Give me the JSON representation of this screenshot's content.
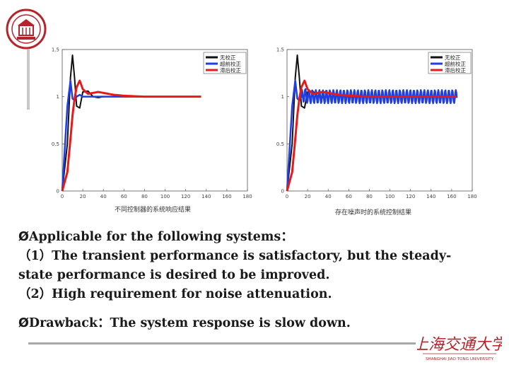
{
  "colors": {
    "black_series": "#111111",
    "blue_series": "#1f3fe0",
    "red_series": "#e61a1a",
    "seal": "#b4242a",
    "logo": "#b4242a"
  },
  "chart_data": [
    {
      "type": "line",
      "x": [
        0,
        5,
        8,
        10,
        12,
        14,
        17,
        20,
        25,
        30,
        35,
        40,
        50,
        60,
        80,
        100,
        120,
        140,
        160,
        180
      ],
      "xlim": [
        0,
        180
      ],
      "ylim": [
        0,
        1.5
      ],
      "xticks": [
        "0",
        "20",
        "40",
        "60",
        "80",
        "100",
        "120",
        "140",
        "160",
        "180"
      ],
      "yticks": [
        "0",
        "0.5",
        "1",
        "1.5"
      ],
      "caption": "不同控制器的系统响应结果",
      "legend_position": "top-right",
      "series": [
        {
          "name": "无校正",
          "values": [
            0,
            0.5,
            1.2,
            1.44,
            1.2,
            0.9,
            0.88,
            1.05,
            1.06,
            1.0,
            0.99,
            1.0,
            1.0,
            1.0,
            1.0,
            1.0,
            1.0,
            1.0,
            1.0,
            1.0
          ]
        },
        {
          "name": "超前校正",
          "values": [
            0,
            0.9,
            1.17,
            0.98,
            0.96,
            1.0,
            1.02,
            1.0,
            1.0,
            1.0,
            1.0,
            1.0,
            1.0,
            1.0,
            1.0,
            1.0,
            1.0,
            1.0,
            1.0,
            1.0
          ]
        },
        {
          "name": "滞后校正",
          "values": [
            0,
            0.2,
            0.55,
            0.8,
            0.98,
            1.1,
            1.17,
            1.08,
            1.03,
            1.04,
            1.05,
            1.04,
            1.02,
            1.01,
            1.0,
            1.0,
            1.0,
            1.0,
            1.0,
            1.0
          ]
        }
      ]
    },
    {
      "type": "line",
      "x": [
        0,
        5,
        8,
        10,
        12,
        14,
        17,
        20,
        25,
        30,
        35,
        40,
        50,
        60,
        80,
        100,
        120,
        140,
        160,
        180
      ],
      "xlim": [
        0,
        180
      ],
      "ylim": [
        0,
        1.5
      ],
      "xticks": [
        "0",
        "20",
        "40",
        "60",
        "80",
        "100",
        "120",
        "140",
        "160",
        "180"
      ],
      "yticks": [
        "0",
        "0.5",
        "1",
        "1.5"
      ],
      "caption": "存在噪声时的系统控制结果",
      "legend_position": "top-right",
      "series": [
        {
          "name": "无校正",
          "values": [
            0,
            0.5,
            1.2,
            1.44,
            1.2,
            0.9,
            0.88,
            1.05,
            1.06,
            1.0,
            0.99,
            1.0,
            1.0,
            1.0,
            1.0,
            1.0,
            1.0,
            1.0,
            1.0,
            1.0
          ]
        },
        {
          "name": "超前校正",
          "values": [
            0,
            0.9,
            1.17,
            0.98,
            0.96,
            1.0,
            1.02,
            1.0,
            1.0,
            1.0,
            1.0,
            1.0,
            1.0,
            1.0,
            1.0,
            1.0,
            1.0,
            1.0,
            1.0,
            1.0
          ],
          "noise_amplitude": 0.07
        },
        {
          "name": "滞后校正",
          "values": [
            0,
            0.2,
            0.55,
            0.8,
            0.98,
            1.1,
            1.17,
            1.08,
            1.03,
            1.04,
            1.05,
            1.04,
            1.02,
            1.01,
            1.0,
            1.0,
            1.0,
            1.0,
            1.0,
            1.0
          ]
        }
      ]
    }
  ],
  "bullets": {
    "arrow": "Ø",
    "item1_title": "Applicable for the following systems：",
    "item1_sub1": "（1）The transient performance is satisfactory, but the steady-",
    "item1_sub1_cont": "state performance is desired to be improved.",
    "item1_sub2": "（2）High requirement for noise attenuation.",
    "item2": "Drawback：The system response is slow down."
  },
  "logo": {
    "chinese": "上海交通大学",
    "english": "SHANGHAI JIAO TONG UNIVERSITY"
  }
}
